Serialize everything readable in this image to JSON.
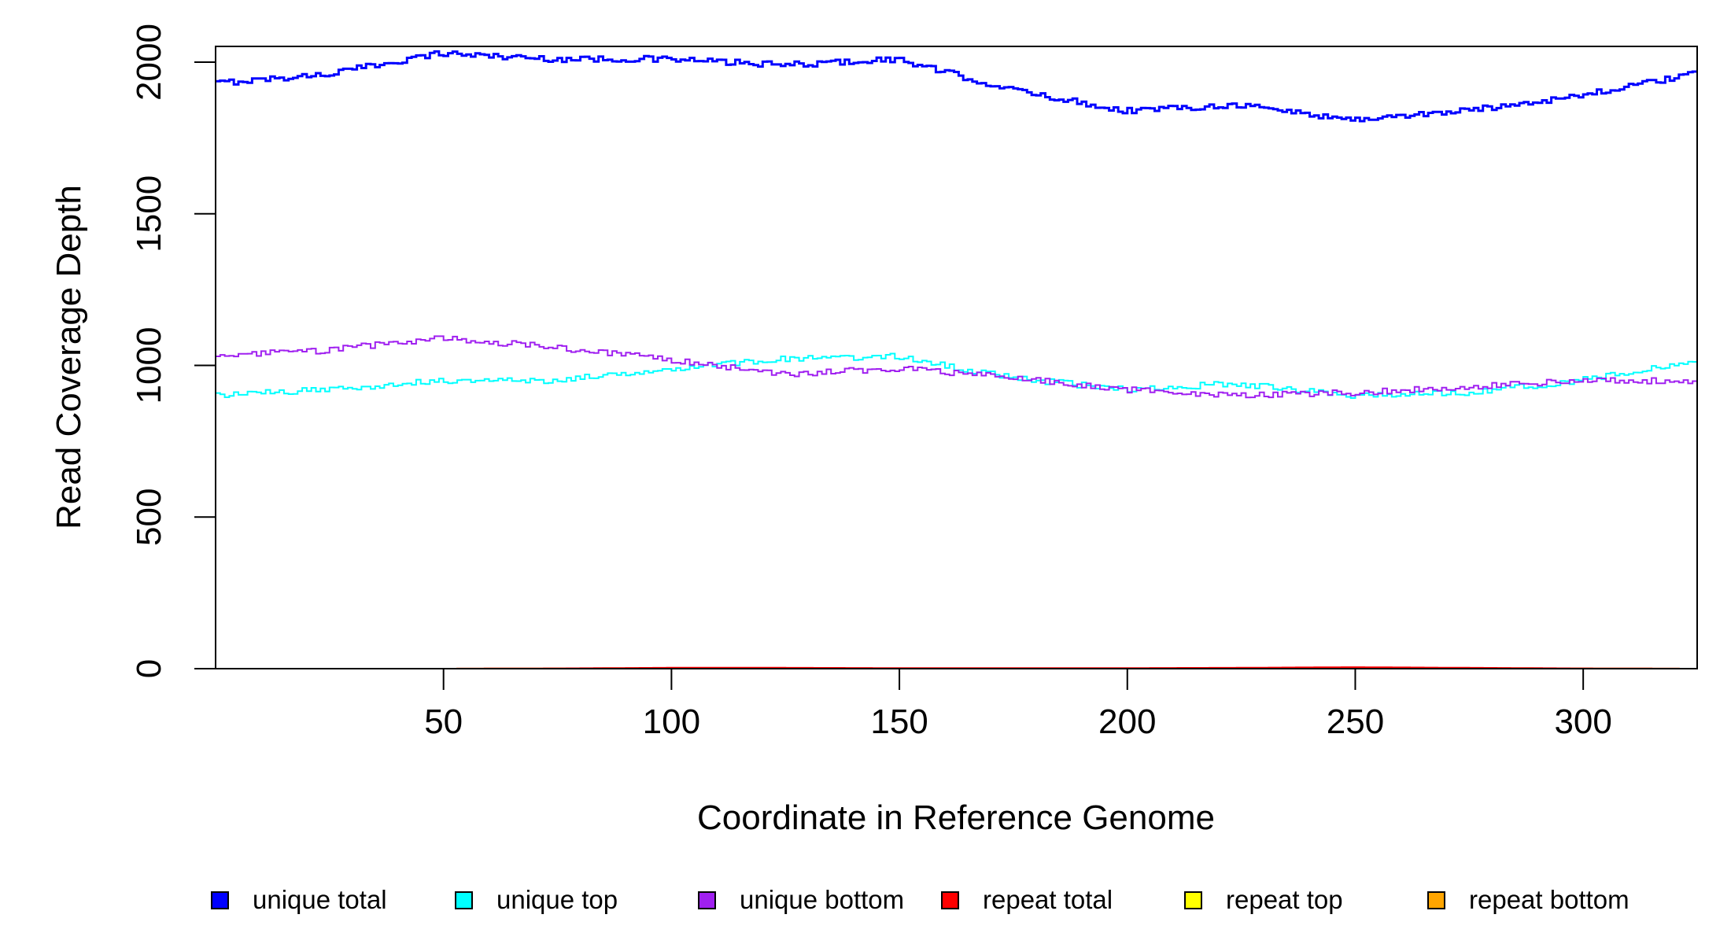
{
  "chart_data": {
    "type": "line",
    "title": "",
    "xlabel": "Coordinate in Reference Genome",
    "ylabel": "Read Coverage Depth",
    "xlim": [
      0,
      325
    ],
    "ylim": [
      0,
      2000
    ],
    "x_ticks": [
      50,
      100,
      150,
      200,
      250,
      300
    ],
    "y_ticks": [
      0,
      500,
      1000,
      1500,
      2000
    ],
    "step_style": "step",
    "legend_position": "bottom",
    "x": [
      0,
      25,
      50,
      75,
      100,
      125,
      150,
      175,
      200,
      225,
      250,
      275,
      300,
      325
    ],
    "series": [
      {
        "name": "unique total",
        "color": "#0000FF",
        "values": [
          1930,
          1960,
          2030,
          2010,
          2010,
          1990,
          2010,
          1910,
          1840,
          1860,
          1810,
          1840,
          1890,
          1960
        ]
      },
      {
        "name": "unique top",
        "color": "#00FFFF",
        "values": [
          900,
          920,
          950,
          950,
          990,
          1020,
          1030,
          960,
          920,
          940,
          900,
          910,
          950,
          1010
        ]
      },
      {
        "name": "unique bottom",
        "color": "#A020F0",
        "values": [
          1030,
          1050,
          1090,
          1060,
          1020,
          970,
          990,
          960,
          920,
          900,
          910,
          930,
          950,
          950
        ]
      },
      {
        "name": "repeat total",
        "color": "#FF0000",
        "values": [
          0,
          0,
          0,
          1,
          3,
          3,
          2,
          2,
          2,
          3,
          5,
          3,
          1,
          0
        ]
      },
      {
        "name": "repeat top",
        "color": "#FFFF00",
        "values": [
          0,
          0,
          0,
          0,
          1,
          1,
          1,
          1,
          1,
          1,
          2,
          1,
          0,
          0
        ]
      },
      {
        "name": "repeat bottom",
        "color": "#FFA500",
        "values": [
          0,
          0,
          0,
          1,
          2,
          2,
          1,
          1,
          1,
          2,
          3,
          2,
          1,
          0
        ]
      }
    ]
  }
}
